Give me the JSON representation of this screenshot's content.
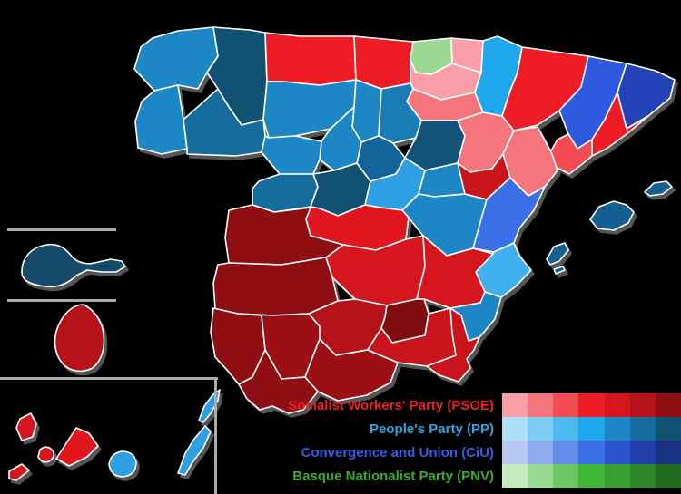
{
  "map": {
    "region": "Spain — general election results by province",
    "provinces": {
      "a_coruna": {
        "label": "A Coruña",
        "color": "#1D87C6"
      },
      "lugo": {
        "label": "Lugo",
        "color": "#115272"
      },
      "pontevedra": {
        "label": "Pontevedra",
        "color": "#1D87C6"
      },
      "ourense": {
        "label": "Ourense",
        "color": "#166C9D"
      },
      "asturias": {
        "label": "Asturias",
        "color": "#EE1C25"
      },
      "cantabria": {
        "label": "Cantabria",
        "color": "#EE1C25"
      },
      "biscay": {
        "label": "Biscay",
        "color": "#9AD992"
      },
      "gipuzkoa": {
        "label": "Gipuzkoa",
        "color": "#FA9FA7"
      },
      "alava": {
        "label": "Álava",
        "color": "#FA9FA7"
      },
      "navarre": {
        "label": "Navarre",
        "color": "#1FA7EC"
      },
      "la_rioja": {
        "label": "La Rioja",
        "color": "#F5757D"
      },
      "leon": {
        "label": "León",
        "color": "#1D87C6"
      },
      "palencia": {
        "label": "Palencia",
        "color": "#1D87C6"
      },
      "burgos": {
        "label": "Burgos",
        "color": "#1A7CB5"
      },
      "soria": {
        "label": "Soria",
        "color": "#125478"
      },
      "segovia": {
        "label": "Segovia",
        "color": "#15639B"
      },
      "valladolid": {
        "label": "Valladolid",
        "color": "#1D87C6"
      },
      "zamora": {
        "label": "Zamora",
        "color": "#1D87C6"
      },
      "salamanca": {
        "label": "Salamanca",
        "color": "#166C9D"
      },
      "avila": {
        "label": "Ávila",
        "color": "#115272"
      },
      "madrid": {
        "label": "Madrid",
        "color": "#2D9FE2"
      },
      "guadalajara": {
        "label": "Guadalajara",
        "color": "#1D87C6"
      },
      "cuenca": {
        "label": "Cuenca",
        "color": "#1D87C6"
      },
      "toledo": {
        "label": "Toledo",
        "color": "#E2161E"
      },
      "ciudad_real": {
        "label": "Ciudad Real",
        "color": "#D6161E"
      },
      "albacete": {
        "label": "Albacete",
        "color": "#D6161E"
      },
      "zaragoza": {
        "label": "Zaragoza",
        "color": "#F5757D"
      },
      "huesca": {
        "label": "Huesca",
        "color": "#EE1C25"
      },
      "teruel": {
        "label": "Teruel",
        "color": "#C9141C"
      },
      "lleida": {
        "label": "Lleida",
        "color": "#2F5ADF"
      },
      "girona": {
        "label": "Girona",
        "color": "#2243B8"
      },
      "barcelona": {
        "label": "Barcelona",
        "color": "#EE1C25"
      },
      "tarragona": {
        "label": "Tarragona",
        "color": "#F24B53"
      },
      "castellon": {
        "label": "Castellón",
        "color": "#F5757D"
      },
      "valencia": {
        "label": "Valencia",
        "color": "#3B6FE6"
      },
      "alicante": {
        "label": "Alicante",
        "color": "#3FB2EE"
      },
      "murcia": {
        "label": "Murcia",
        "color": "#1D87C6"
      },
      "caceres": {
        "label": "Cáceres",
        "color": "#8E0E13"
      },
      "badajoz": {
        "label": "Badajoz",
        "color": "#8E0E13"
      },
      "huelva": {
        "label": "Huelva",
        "color": "#8E0E13"
      },
      "sevilla": {
        "label": "Sevilla",
        "color": "#9B0F15"
      },
      "cadiz": {
        "label": "Cádiz",
        "color": "#8E0E13"
      },
      "cordoba": {
        "label": "Córdoba",
        "color": "#B5121A"
      },
      "jaen": {
        "label": "Jaén",
        "color": "#7E0C10"
      },
      "granada": {
        "label": "Granada",
        "color": "#C9141C"
      },
      "malaga": {
        "label": "Málaga",
        "color": "#9B0F15"
      },
      "almeria": {
        "label": "Almería",
        "color": "#C9141C"
      },
      "mallorca": {
        "label": "Mallorca",
        "color": "#15608F"
      },
      "menorca": {
        "label": "Menorca",
        "color": "#15608F"
      },
      "ibiza": {
        "label": "Ibiza",
        "color": "#15608F"
      },
      "formentera": {
        "label": "Formentera",
        "color": "#15608F"
      },
      "ceuta": {
        "label": "Ceuta",
        "color": "#154A6D"
      },
      "melilla": {
        "label": "Melilla",
        "color": "#B5121A"
      },
      "tenerife": {
        "label": "Tenerife",
        "color": "#E2161E"
      },
      "la_palma": {
        "label": "La Palma",
        "color": "#D6161E"
      },
      "la_gomera": {
        "label": "La Gomera",
        "color": "#D6161E"
      },
      "el_hierro": {
        "label": "El Hierro",
        "color": "#D6161E"
      },
      "gran_canaria": {
        "label": "Gran Canaria",
        "color": "#2D9FE2"
      },
      "fuerteventura": {
        "label": "Fuerteventura",
        "color": "#2D9FE2"
      },
      "lanzarote": {
        "label": "Lanzarote",
        "color": "#2D9FE2"
      }
    }
  },
  "legend": {
    "parties": [
      {
        "id": "psoe",
        "label": "Socialist Workers' Party (PSOE)",
        "text_color": "#ED2028",
        "swatches": [
          "#FA9FA7",
          "#F5757D",
          "#F24B53",
          "#EE1C25",
          "#D6161E",
          "#B5121A",
          "#8E0E13"
        ]
      },
      {
        "id": "pp",
        "label": "People's Party (PP)",
        "text_color": "#2FA3DE",
        "swatches": [
          "#AEE0F8",
          "#7DCDF4",
          "#4CBAF0",
          "#1FA7EC",
          "#1D87C6",
          "#166C9D",
          "#115272"
        ]
      },
      {
        "id": "ciu",
        "label": "Convergence and Union (CiU)",
        "text_color": "#2E5FE2",
        "swatches": [
          "#B7C9F3",
          "#8EABEE",
          "#648DEA",
          "#3B6FE6",
          "#2C55CD",
          "#2240AA",
          "#183180"
        ]
      },
      {
        "id": "pnv",
        "label": "Basque Nationalist Party (PNV)",
        "text_color": "#3BAC33",
        "swatches": [
          "#C7EAC1",
          "#9AD992",
          "#6DC864",
          "#40B737",
          "#379F2F",
          "#2D8627",
          "#226B1E"
        ]
      }
    ]
  }
}
